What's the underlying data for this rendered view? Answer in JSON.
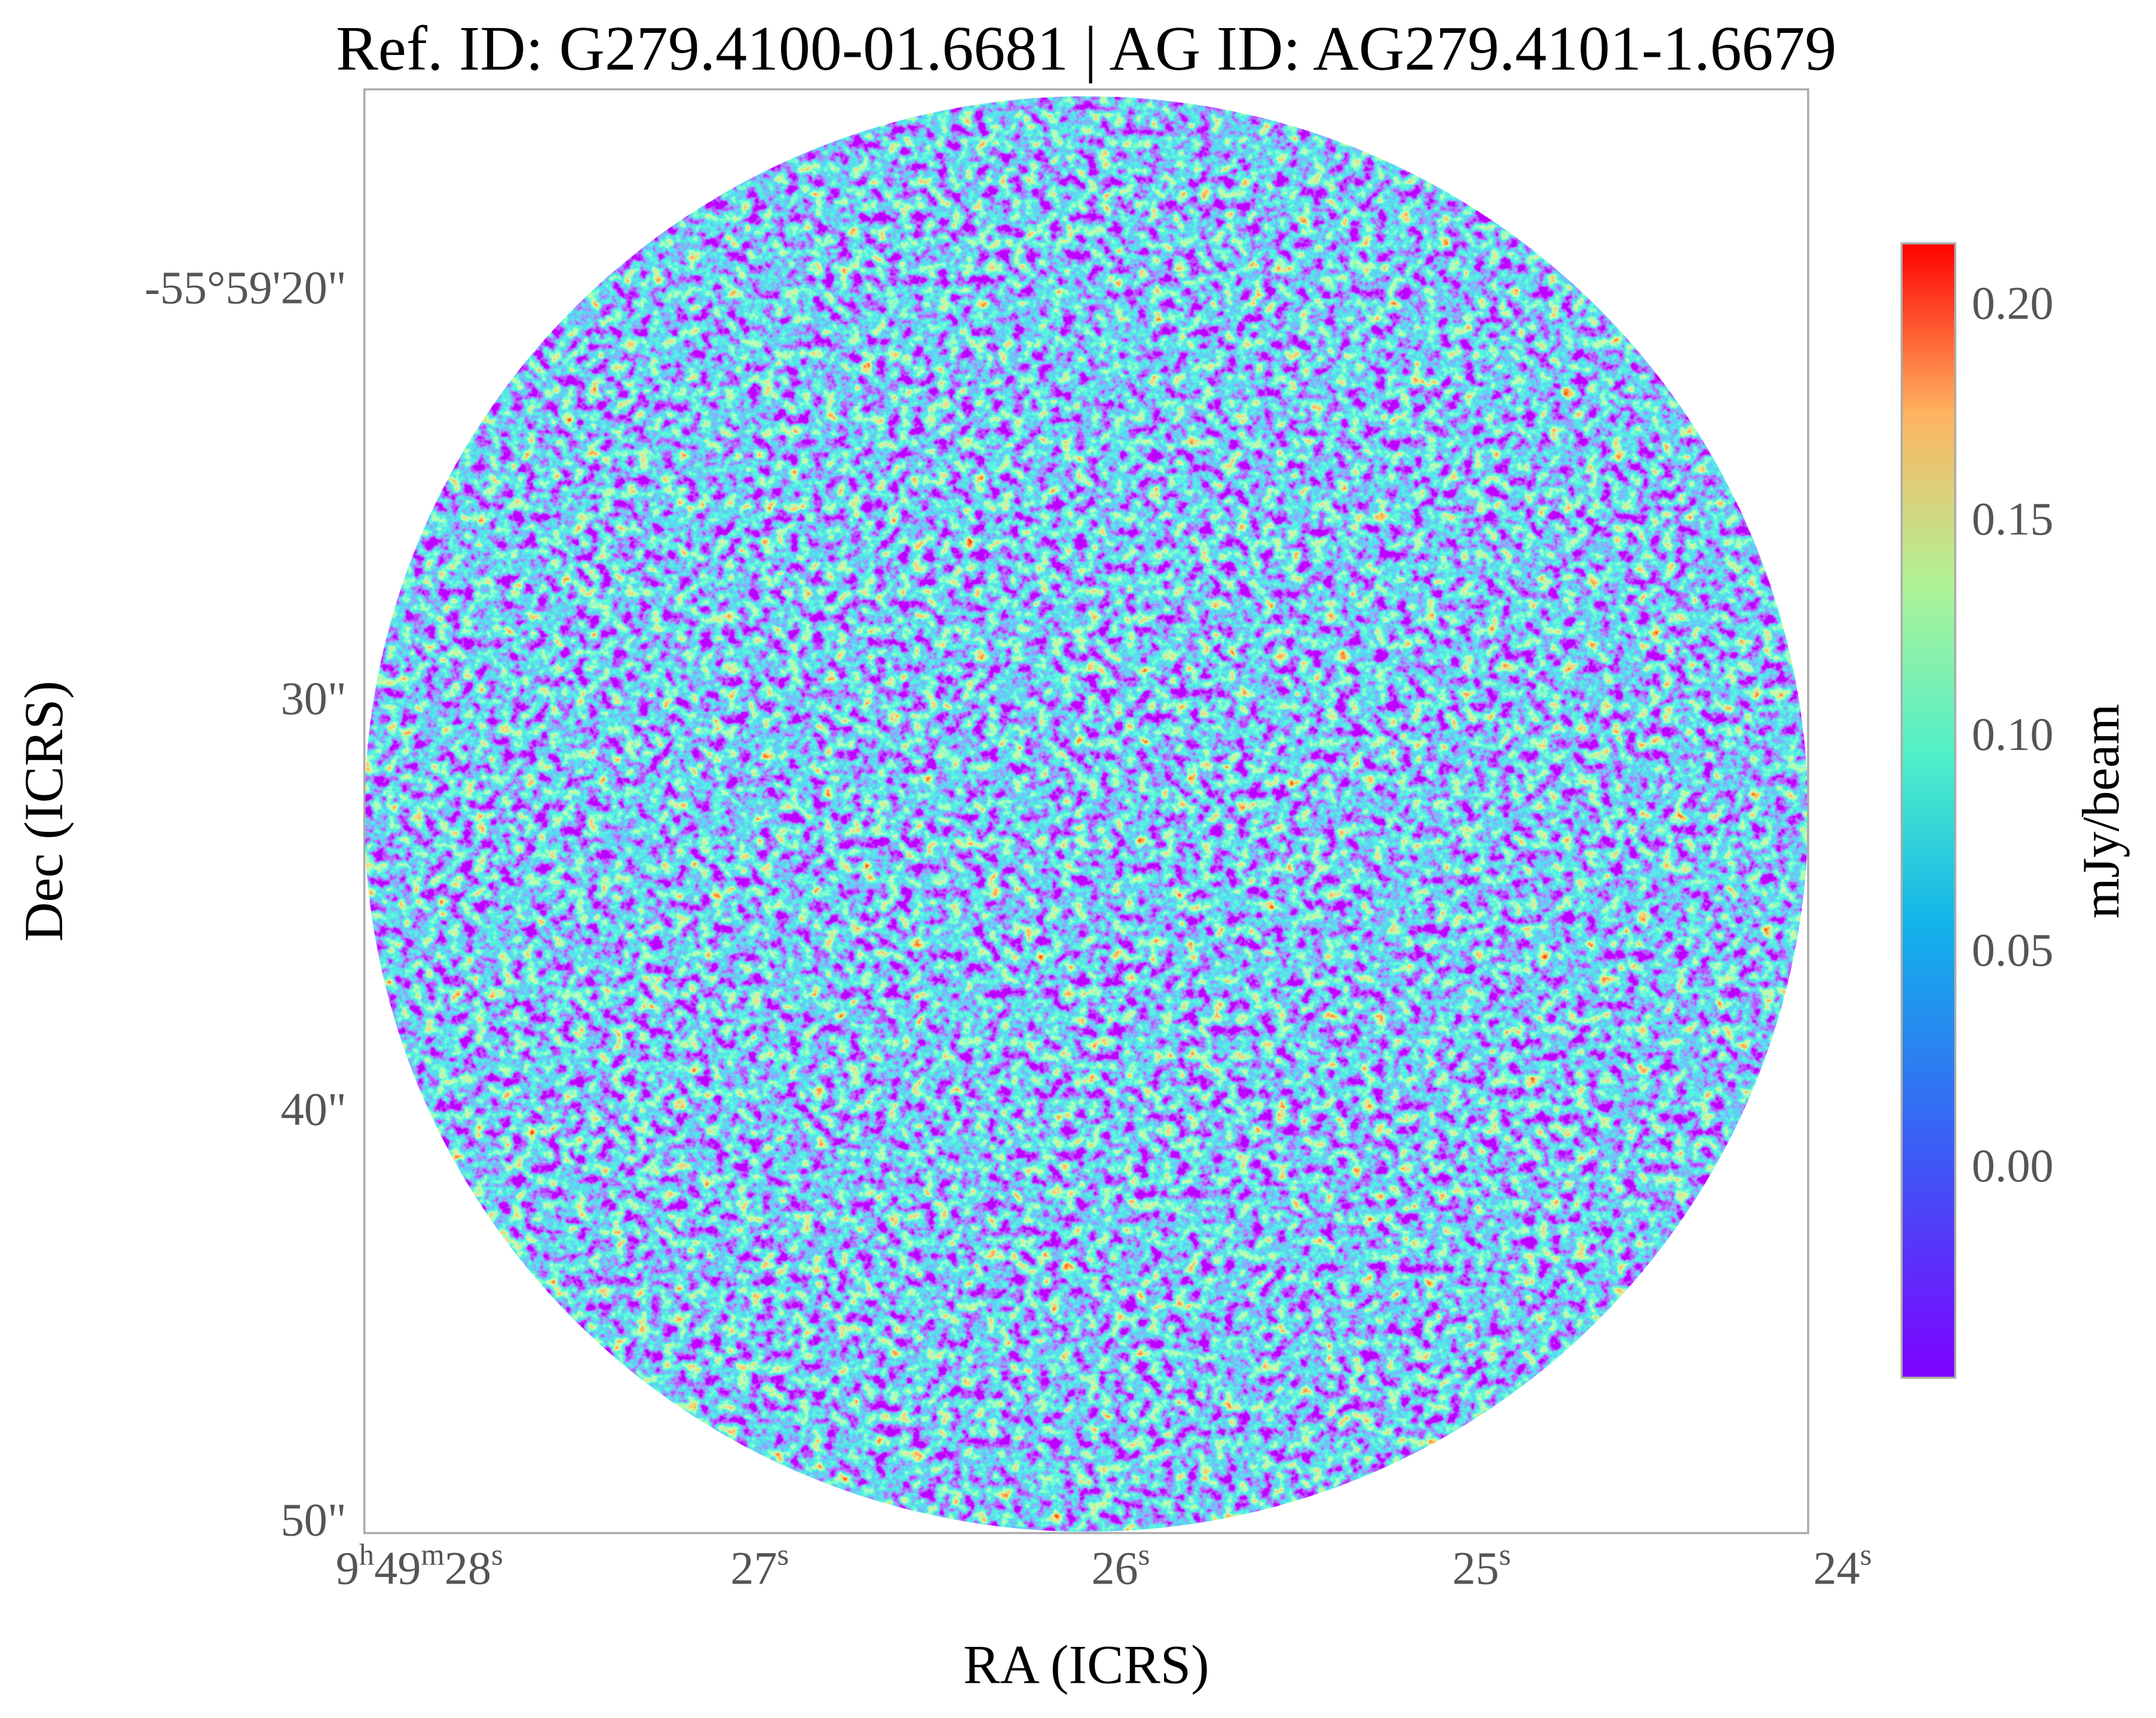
{
  "chart_data": {
    "type": "image",
    "title": "Ref. ID: G279.4100-01.6681 | AG ID: AG279.4101-1.6679",
    "xlabel": "RA (ICRS)",
    "ylabel": "Dec (ICRS)",
    "xlim": [
      28,
      24
    ],
    "xticks": [
      {
        "value": 28,
        "label": [
          "9",
          "h",
          "49",
          "m",
          "28",
          "s"
        ]
      },
      {
        "value": 27,
        "label": [
          "27",
          "s"
        ]
      },
      {
        "value": 26,
        "label": [
          "26",
          "s"
        ]
      },
      {
        "value": 25,
        "label": [
          "25",
          "s"
        ]
      },
      {
        "value": 24,
        "label": [
          "24",
          "s"
        ]
      }
    ],
    "ylim": [
      15.05,
      50.2
    ],
    "yticks": [
      {
        "value": 20,
        "label": "-55°59'20\""
      },
      {
        "value": 30,
        "label": "30\""
      },
      {
        "value": 40,
        "label": "40\""
      },
      {
        "value": 50,
        "label": "50\""
      }
    ],
    "colorbar": {
      "label": "mJy/beam",
      "lim": [
        -0.048,
        0.215
      ],
      "ticks": [
        {
          "value": 0,
          "label": "0.00"
        },
        {
          "value": 0.05,
          "label": "0.05"
        },
        {
          "value": 0.1,
          "label": "0.10"
        },
        {
          "value": 0.15,
          "label": "0.15"
        },
        {
          "value": 0.2,
          "label": "0.20"
        }
      ]
    }
  }
}
